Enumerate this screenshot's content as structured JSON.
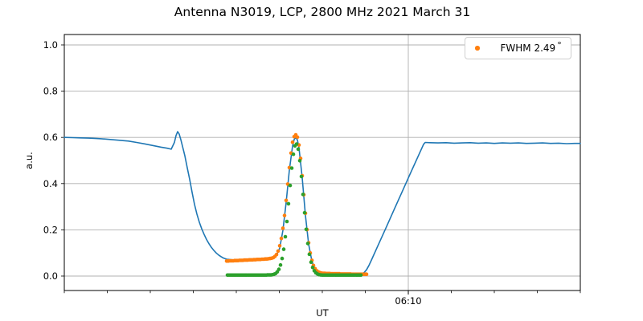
{
  "title": "Antenna N3019, LCP, 2800 MHz 2021 March 31",
  "legend": {
    "text": "FWHM 2.49",
    "degree": "°",
    "marker_color": "#ff7f0e"
  },
  "chart_data": {
    "type": "line+scatter",
    "title": "Antenna N3019, LCP, 2800 MHz 2021 March 31",
    "xlabel": "UT",
    "ylabel": "a.u.",
    "grid": true,
    "legend_position": "upper right",
    "ylim": [
      -0.0625,
      1.0451
    ],
    "y_ticks": [
      {
        "v": 0.0,
        "label": "0.0"
      },
      {
        "v": 0.2,
        "label": "0.2"
      },
      {
        "v": 0.4,
        "label": "0.4"
      },
      {
        "v": 0.6,
        "label": "0.6"
      },
      {
        "v": 0.8,
        "label": "0.8"
      },
      {
        "v": 1.0,
        "label": "1.0"
      }
    ],
    "x_axis": {
      "t_min": 0,
      "t_max": 60,
      "unit": "minutes",
      "minor_tick_step": 5,
      "major_tick": {
        "t": 40,
        "label": "06:10"
      }
    },
    "colors": {
      "line": "#1f77b4",
      "scatter_fwhm": "#ff7f0e",
      "scatter_fit": "#2ca02c",
      "grid": "#b0b0b0",
      "axis": "#000000"
    },
    "series": [
      {
        "name": "signal-line",
        "type": "line",
        "color": "#1f77b4",
        "label": null,
        "points": [
          [
            0,
            0.6
          ],
          [
            0.93,
            0.599
          ],
          [
            1.87,
            0.598
          ],
          [
            2.8,
            0.597
          ],
          [
            3.74,
            0.595
          ],
          [
            4.67,
            0.593
          ],
          [
            5.61,
            0.59
          ],
          [
            6.54,
            0.587
          ],
          [
            7.48,
            0.584
          ],
          [
            8.41,
            0.578
          ],
          [
            9.35,
            0.572
          ],
          [
            10.28,
            0.565
          ],
          [
            11.21,
            0.558
          ],
          [
            11.96,
            0.553
          ],
          [
            12.43,
            0.549
          ],
          [
            12.8,
            0.578
          ],
          [
            12.99,
            0.608
          ],
          [
            13.18,
            0.625
          ],
          [
            13.36,
            0.614
          ],
          [
            13.55,
            0.59
          ],
          [
            13.74,
            0.562
          ],
          [
            14.02,
            0.52
          ],
          [
            14.3,
            0.468
          ],
          [
            14.58,
            0.418
          ],
          [
            14.86,
            0.362
          ],
          [
            15.14,
            0.31
          ],
          [
            15.42,
            0.268
          ],
          [
            15.7,
            0.233
          ],
          [
            15.98,
            0.204
          ],
          [
            16.26,
            0.18
          ],
          [
            16.54,
            0.158
          ],
          [
            16.82,
            0.14
          ],
          [
            17.1,
            0.124
          ],
          [
            17.38,
            0.111
          ],
          [
            17.66,
            0.1
          ],
          [
            17.94,
            0.091
          ],
          [
            18.22,
            0.084
          ],
          [
            18.5,
            0.078
          ],
          [
            18.88,
            0.073
          ],
          [
            19.63,
            0.07
          ],
          [
            20.56,
            0.07
          ],
          [
            21.5,
            0.07
          ],
          [
            22.43,
            0.071
          ],
          [
            23.36,
            0.073
          ],
          [
            23.93,
            0.076
          ],
          [
            24.3,
            0.08
          ],
          [
            24.67,
            0.09
          ],
          [
            25.05,
            0.121
          ],
          [
            25.42,
            0.198
          ],
          [
            25.79,
            0.318
          ],
          [
            26.17,
            0.458
          ],
          [
            26.54,
            0.563
          ],
          [
            26.73,
            0.591
          ],
          [
            26.92,
            0.6
          ],
          [
            27.1,
            0.589
          ],
          [
            27.29,
            0.555
          ],
          [
            27.66,
            0.425
          ],
          [
            28.04,
            0.263
          ],
          [
            28.41,
            0.138
          ],
          [
            28.79,
            0.064
          ],
          [
            29.16,
            0.029
          ],
          [
            29.53,
            0.014
          ],
          [
            29.91,
            0.008
          ],
          [
            30.84,
            0.006
          ],
          [
            31.78,
            0.005
          ],
          [
            32.71,
            0.005
          ],
          [
            33.64,
            0.005
          ],
          [
            34.21,
            0.006
          ],
          [
            34.58,
            0.009
          ],
          [
            34.86,
            0.015
          ],
          [
            35.14,
            0.027
          ],
          [
            35.42,
            0.046
          ],
          [
            35.7,
            0.068
          ],
          [
            36.45,
            0.13
          ],
          [
            37.38,
            0.207
          ],
          [
            38.32,
            0.285
          ],
          [
            39.25,
            0.362
          ],
          [
            40.19,
            0.44
          ],
          [
            40.93,
            0.501
          ],
          [
            41.78,
            0.57
          ],
          [
            41.96,
            0.578
          ],
          [
            42.52,
            0.577
          ],
          [
            43.46,
            0.576
          ],
          [
            44.39,
            0.577
          ],
          [
            45.33,
            0.575
          ],
          [
            46.26,
            0.576
          ],
          [
            47.2,
            0.577
          ],
          [
            48.13,
            0.575
          ],
          [
            49.07,
            0.576
          ],
          [
            50,
            0.574
          ],
          [
            50.93,
            0.576
          ],
          [
            51.87,
            0.575
          ],
          [
            52.8,
            0.576
          ],
          [
            53.74,
            0.574
          ],
          [
            54.67,
            0.575
          ],
          [
            55.61,
            0.576
          ],
          [
            56.54,
            0.574
          ],
          [
            57.48,
            0.575
          ],
          [
            58.41,
            0.573
          ],
          [
            59.35,
            0.574
          ],
          [
            60,
            0.574
          ]
        ]
      },
      {
        "name": "fwhm-scatter",
        "type": "scatter",
        "color": "#ff7f0e",
        "label": "FWHM 2.49°",
        "points": [
          [
            18.88,
            0.065
          ],
          [
            19.07,
            0.065
          ],
          [
            19.25,
            0.066
          ],
          [
            19.44,
            0.066
          ],
          [
            19.63,
            0.066
          ],
          [
            19.81,
            0.067
          ],
          [
            20,
            0.067
          ],
          [
            20.19,
            0.067
          ],
          [
            20.37,
            0.068
          ],
          [
            20.56,
            0.068
          ],
          [
            20.75,
            0.068
          ],
          [
            20.93,
            0.069
          ],
          [
            21.12,
            0.069
          ],
          [
            21.31,
            0.069
          ],
          [
            21.5,
            0.07
          ],
          [
            21.68,
            0.07
          ],
          [
            21.87,
            0.07
          ],
          [
            22.06,
            0.071
          ],
          [
            22.24,
            0.071
          ],
          [
            22.43,
            0.072
          ],
          [
            22.62,
            0.072
          ],
          [
            22.8,
            0.072
          ],
          [
            22.99,
            0.073
          ],
          [
            23.18,
            0.073
          ],
          [
            23.36,
            0.074
          ],
          [
            23.55,
            0.074
          ],
          [
            23.74,
            0.075
          ],
          [
            23.93,
            0.076
          ],
          [
            24.11,
            0.077
          ],
          [
            24.3,
            0.08
          ],
          [
            24.49,
            0.085
          ],
          [
            24.67,
            0.093
          ],
          [
            24.86,
            0.108
          ],
          [
            25.05,
            0.131
          ],
          [
            25.23,
            0.163
          ],
          [
            25.42,
            0.207
          ],
          [
            25.61,
            0.262
          ],
          [
            25.79,
            0.327
          ],
          [
            25.98,
            0.398
          ],
          [
            26.17,
            0.469
          ],
          [
            26.36,
            0.532
          ],
          [
            26.54,
            0.579
          ],
          [
            26.73,
            0.603
          ],
          [
            26.92,
            0.611
          ],
          [
            27.1,
            0.601
          ],
          [
            27.29,
            0.567
          ],
          [
            27.48,
            0.509
          ],
          [
            27.66,
            0.434
          ],
          [
            27.85,
            0.352
          ],
          [
            28.04,
            0.272
          ],
          [
            28.22,
            0.201
          ],
          [
            28.41,
            0.144
          ],
          [
            28.6,
            0.1
          ],
          [
            28.79,
            0.068
          ],
          [
            28.97,
            0.046
          ],
          [
            29.16,
            0.032
          ],
          [
            29.35,
            0.023
          ],
          [
            29.53,
            0.018
          ],
          [
            29.72,
            0.015
          ],
          [
            29.91,
            0.013
          ],
          [
            30.09,
            0.012
          ],
          [
            30.28,
            0.012
          ],
          [
            30.47,
            0.011
          ],
          [
            30.65,
            0.011
          ],
          [
            30.84,
            0.011
          ],
          [
            31.03,
            0.01
          ],
          [
            31.21,
            0.01
          ],
          [
            31.4,
            0.01
          ],
          [
            31.59,
            0.01
          ],
          [
            31.78,
            0.01
          ],
          [
            31.96,
            0.01
          ],
          [
            32.15,
            0.009
          ],
          [
            32.34,
            0.009
          ],
          [
            32.52,
            0.009
          ],
          [
            32.71,
            0.009
          ],
          [
            32.9,
            0.009
          ],
          [
            33.08,
            0.009
          ],
          [
            33.27,
            0.009
          ],
          [
            33.46,
            0.008
          ],
          [
            33.64,
            0.008
          ],
          [
            33.83,
            0.008
          ],
          [
            34.02,
            0.008
          ],
          [
            34.21,
            0.008
          ],
          [
            34.39,
            0.008
          ],
          [
            34.58,
            0.008
          ],
          [
            34.77,
            0.008
          ],
          [
            34.95,
            0.008
          ],
          [
            35.14,
            0.008
          ]
        ]
      },
      {
        "name": "fit-scatter",
        "type": "scatter",
        "color": "#2ca02c",
        "label": null,
        "points": [
          [
            18.97,
            0.004
          ],
          [
            19.16,
            0.004
          ],
          [
            19.35,
            0.004
          ],
          [
            19.53,
            0.004
          ],
          [
            19.72,
            0.004
          ],
          [
            19.91,
            0.004
          ],
          [
            20.09,
            0.004
          ],
          [
            20.28,
            0.004
          ],
          [
            20.47,
            0.004
          ],
          [
            20.65,
            0.004
          ],
          [
            20.84,
            0.004
          ],
          [
            21.03,
            0.004
          ],
          [
            21.21,
            0.004
          ],
          [
            21.4,
            0.004
          ],
          [
            21.59,
            0.004
          ],
          [
            21.78,
            0.004
          ],
          [
            21.96,
            0.004
          ],
          [
            22.15,
            0.004
          ],
          [
            22.34,
            0.004
          ],
          [
            22.52,
            0.004
          ],
          [
            22.71,
            0.004
          ],
          [
            22.9,
            0.004
          ],
          [
            23.08,
            0.004
          ],
          [
            23.27,
            0.004
          ],
          [
            23.46,
            0.004
          ],
          [
            23.64,
            0.005
          ],
          [
            23.83,
            0.005
          ],
          [
            24.02,
            0.005
          ],
          [
            24.21,
            0.006
          ],
          [
            24.39,
            0.008
          ],
          [
            24.58,
            0.011
          ],
          [
            24.77,
            0.018
          ],
          [
            24.95,
            0.029
          ],
          [
            25.14,
            0.048
          ],
          [
            25.33,
            0.076
          ],
          [
            25.51,
            0.116
          ],
          [
            25.7,
            0.17
          ],
          [
            25.89,
            0.236
          ],
          [
            26.07,
            0.313
          ],
          [
            26.26,
            0.392
          ],
          [
            26.45,
            0.467
          ],
          [
            26.64,
            0.527
          ],
          [
            26.82,
            0.563
          ],
          [
            27.01,
            0.571
          ],
          [
            27.2,
            0.549
          ],
          [
            27.38,
            0.499
          ],
          [
            27.57,
            0.431
          ],
          [
            27.76,
            0.353
          ],
          [
            27.94,
            0.274
          ],
          [
            28.13,
            0.202
          ],
          [
            28.32,
            0.141
          ],
          [
            28.5,
            0.094
          ],
          [
            28.69,
            0.06
          ],
          [
            28.88,
            0.037
          ],
          [
            29.07,
            0.023
          ],
          [
            29.25,
            0.014
          ],
          [
            29.44,
            0.009
          ],
          [
            29.63,
            0.006
          ],
          [
            29.81,
            0.005
          ],
          [
            30,
            0.004
          ],
          [
            30.19,
            0.004
          ],
          [
            30.37,
            0.004
          ],
          [
            30.56,
            0.004
          ],
          [
            30.75,
            0.004
          ],
          [
            30.93,
            0.004
          ],
          [
            31.12,
            0.004
          ],
          [
            31.31,
            0.004
          ],
          [
            31.5,
            0.004
          ],
          [
            31.68,
            0.004
          ],
          [
            31.87,
            0.004
          ],
          [
            32.06,
            0.004
          ],
          [
            32.24,
            0.004
          ],
          [
            32.43,
            0.004
          ],
          [
            32.62,
            0.004
          ],
          [
            32.8,
            0.004
          ],
          [
            32.99,
            0.004
          ],
          [
            33.18,
            0.004
          ],
          [
            33.36,
            0.004
          ],
          [
            33.55,
            0.004
          ],
          [
            33.74,
            0.004
          ],
          [
            33.93,
            0.004
          ],
          [
            34.11,
            0.004
          ],
          [
            34.3,
            0.004
          ],
          [
            34.49,
            0.004
          ]
        ]
      }
    ]
  }
}
